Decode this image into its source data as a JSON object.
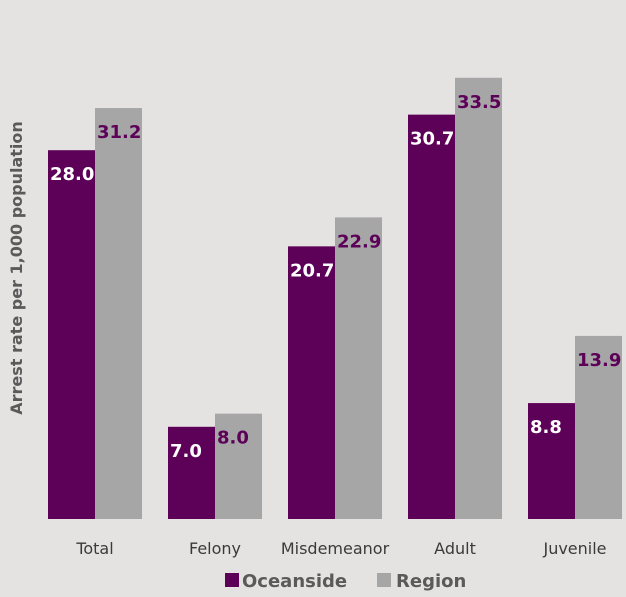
{
  "chart_data": {
    "type": "bar",
    "title": "",
    "xlabel": "",
    "ylabel": "Arrest rate per 1,000 population",
    "categories": [
      "Total",
      "Felony",
      "Misdemeanor",
      "Adult",
      "Juvenile"
    ],
    "series": [
      {
        "name": "Oceanside",
        "color": "#5c0058",
        "values": [
          28.0,
          7.0,
          20.7,
          30.7,
          8.8
        ],
        "labels": [
          "28.0",
          "7.0",
          "20.7",
          "30.7",
          "8.8"
        ],
        "label_color": "#ffffff"
      },
      {
        "name": "Region",
        "color": "#a6a6a6",
        "values": [
          31.2,
          8.0,
          22.9,
          33.5,
          13.9
        ],
        "labels": [
          "31.2",
          "8.0",
          "22.9",
          "33.5",
          "13.9"
        ],
        "label_color": "#5c0058"
      }
    ],
    "ylim": [
      0,
      35
    ],
    "grid": false,
    "legend": "bottom"
  }
}
